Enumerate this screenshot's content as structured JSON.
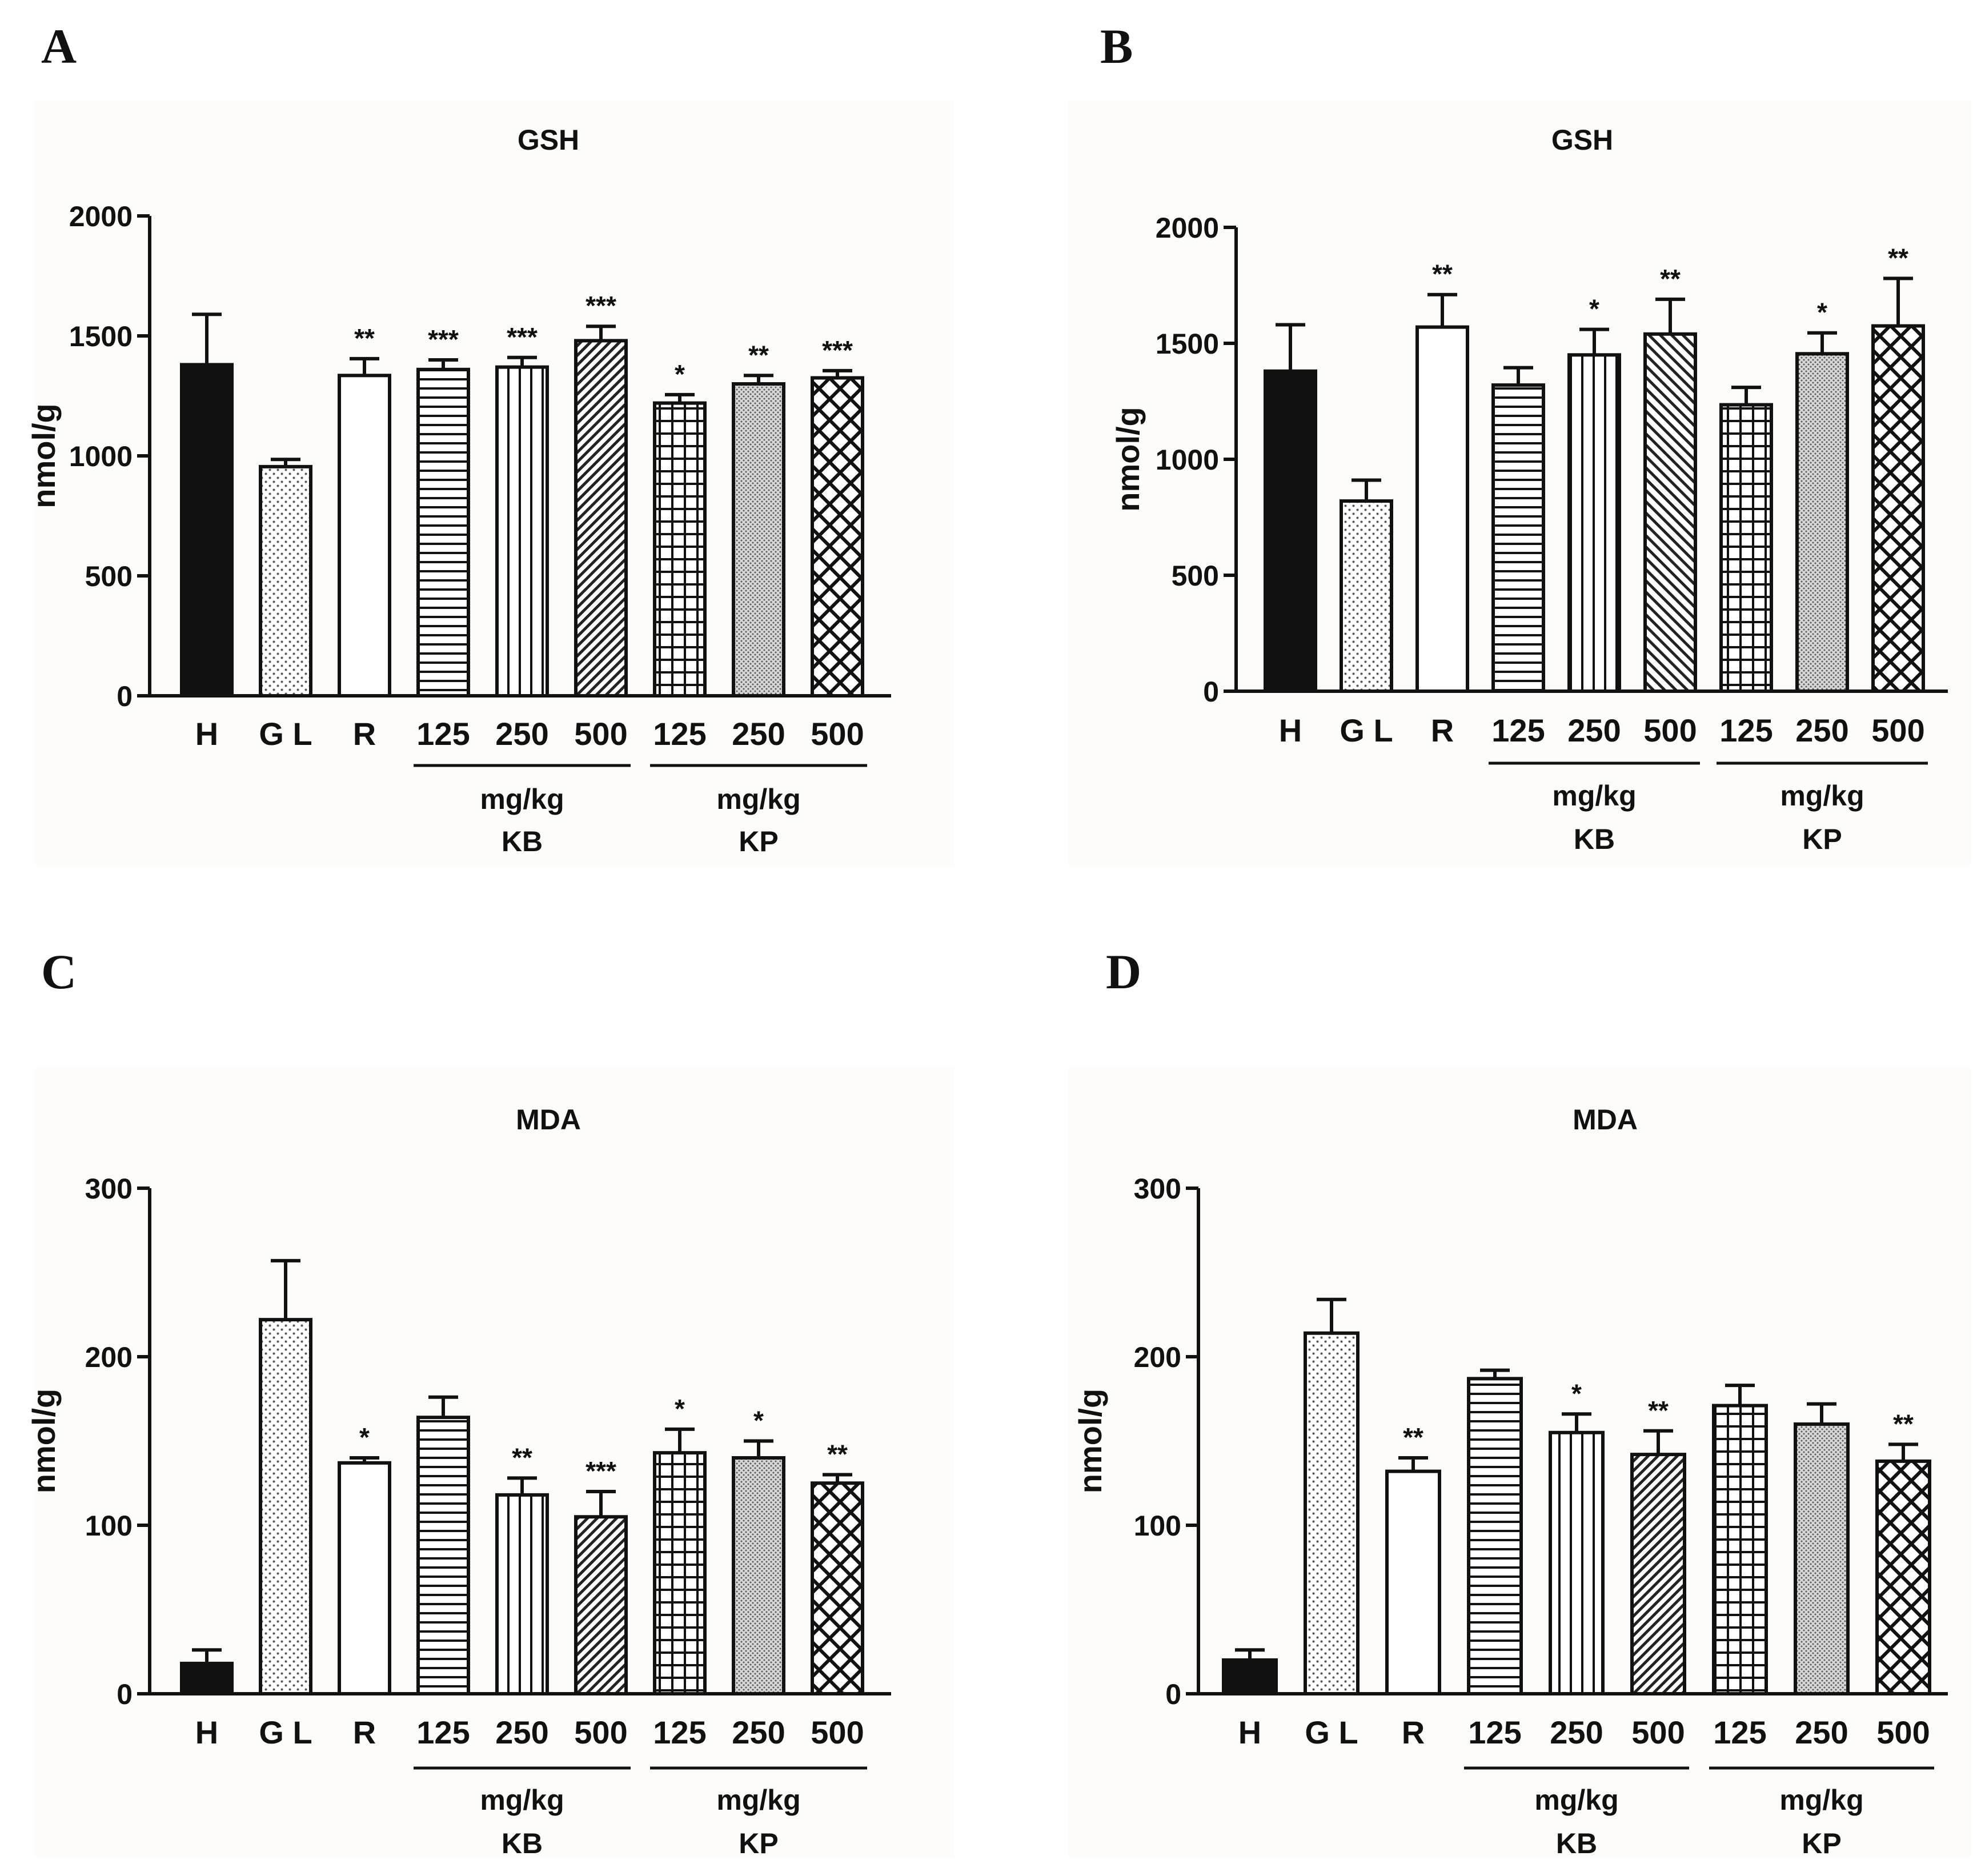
{
  "figure": {
    "panel_letters": [
      "A",
      "B",
      "C",
      "D"
    ]
  },
  "chart_data": [
    {
      "panel": "A",
      "type": "bar",
      "title": "GSH",
      "ylabel": "nmol/g",
      "xlabel": "",
      "ylim": [
        0,
        2000
      ],
      "yticks": [
        0,
        500,
        1000,
        1500,
        2000
      ],
      "categories": [
        "H",
        "G L",
        "R",
        "125",
        "250",
        "500",
        "125",
        "250",
        "500"
      ],
      "patterns": [
        "solid",
        "dots",
        "plain",
        "hlines",
        "vlines",
        "diag",
        "grid",
        "stipple",
        "cross"
      ],
      "values": [
        1380,
        955,
        1335,
        1360,
        1370,
        1480,
        1220,
        1300,
        1325
      ],
      "errors": [
        210,
        30,
        70,
        40,
        40,
        60,
        35,
        35,
        30
      ],
      "significance": [
        "",
        "",
        "**",
        "***",
        "***",
        "***",
        "*",
        "**",
        "***"
      ],
      "groups": [
        {
          "unit": "mg/kg",
          "name": "KB",
          "from": 3,
          "to": 5
        },
        {
          "unit": "mg/kg",
          "name": "KP",
          "from": 6,
          "to": 8
        }
      ]
    },
    {
      "panel": "B",
      "type": "bar",
      "title": "GSH",
      "ylabel": "nmol/g",
      "xlabel": "",
      "ylim": [
        0,
        2000
      ],
      "yticks": [
        0,
        500,
        1000,
        1500,
        2000
      ],
      "categories": [
        "H",
        "G L",
        "R",
        "125",
        "250",
        "500",
        "125",
        "250",
        "500"
      ],
      "patterns": [
        "solid",
        "dots",
        "plain",
        "hlines",
        "vlines",
        "diag2",
        "grid",
        "stipple",
        "cross"
      ],
      "values": [
        1380,
        820,
        1570,
        1320,
        1450,
        1540,
        1235,
        1455,
        1575
      ],
      "errors": [
        200,
        90,
        140,
        75,
        110,
        150,
        75,
        90,
        205
      ],
      "significance": [
        "",
        "",
        "**",
        "",
        "*",
        "**",
        "",
        "*",
        "**"
      ],
      "groups": [
        {
          "unit": "mg/kg",
          "name": "KB",
          "from": 3,
          "to": 5
        },
        {
          "unit": "mg/kg",
          "name": "KP",
          "from": 6,
          "to": 8
        }
      ]
    },
    {
      "panel": "C",
      "type": "bar",
      "title": "MDA",
      "ylabel": "nmol/g",
      "xlabel": "",
      "ylim": [
        0,
        300
      ],
      "yticks": [
        0,
        100,
        200,
        300
      ],
      "categories": [
        "H",
        "G L",
        "R",
        "125",
        "250",
        "500",
        "125",
        "250",
        "500"
      ],
      "patterns": [
        "solid",
        "dots",
        "plain",
        "hlines",
        "vlines",
        "diag",
        "grid",
        "stipple",
        "cross"
      ],
      "values": [
        18,
        222,
        137,
        164,
        118,
        105,
        143,
        140,
        125
      ],
      "errors": [
        8,
        35,
        3,
        12,
        10,
        15,
        14,
        10,
        5
      ],
      "significance": [
        "",
        "",
        "*",
        "",
        "**",
        "***",
        "*",
        "*",
        "**"
      ],
      "groups": [
        {
          "unit": "mg/kg",
          "name": "KB",
          "from": 3,
          "to": 5
        },
        {
          "unit": "mg/kg",
          "name": "KP",
          "from": 6,
          "to": 8
        }
      ]
    },
    {
      "panel": "D",
      "type": "bar",
      "title": "MDA",
      "ylabel": "nmol/g",
      "xlabel": "",
      "ylim": [
        0,
        300
      ],
      "yticks": [
        0,
        100,
        200,
        300
      ],
      "categories": [
        "H",
        "G L",
        "R",
        "125",
        "250",
        "500",
        "125",
        "250",
        "500"
      ],
      "patterns": [
        "solid",
        "dots",
        "plain",
        "hlines",
        "vlines",
        "diag",
        "grid",
        "stipple",
        "cross"
      ],
      "values": [
        20,
        214,
        132,
        187,
        155,
        142,
        171,
        160,
        138
      ],
      "errors": [
        6,
        20,
        8,
        5,
        11,
        14,
        12,
        12,
        10
      ],
      "significance": [
        "",
        "",
        "**",
        "",
        "*",
        "**",
        "",
        "",
        "**"
      ],
      "groups": [
        {
          "unit": "mg/kg",
          "name": "KB",
          "from": 3,
          "to": 5
        },
        {
          "unit": "mg/kg",
          "name": "KP",
          "from": 6,
          "to": 8
        }
      ]
    }
  ]
}
